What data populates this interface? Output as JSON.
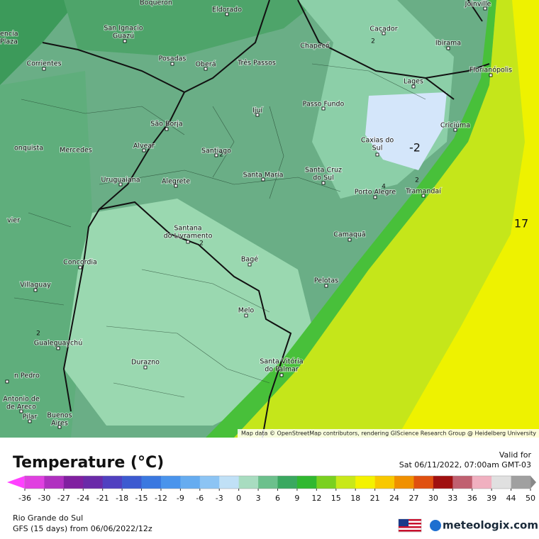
{
  "map": {
    "cities": [
      {
        "lines": [
          "Boqueron"
        ]
      },
      {
        "lines": [
          "Eldorado"
        ]
      },
      {
        "lines": [
          "Joinville"
        ]
      },
      {
        "lines": [
          "San Ignacio",
          "Guazú"
        ]
      },
      {
        "lines": [
          "encia",
          "Plaza"
        ]
      },
      {
        "lines": [
          "Posadas"
        ]
      },
      {
        "lines": [
          "Oberá"
        ]
      },
      {
        "lines": [
          "Três Passos"
        ]
      },
      {
        "lines": [
          "Chapecó"
        ]
      },
      {
        "lines": [
          "Caçador"
        ]
      },
      {
        "lines": [
          "Ibirama"
        ]
      },
      {
        "lines": [
          "Florianópolis"
        ]
      },
      {
        "lines": [
          "Corrientes"
        ]
      },
      {
        "lines": [
          "Lages"
        ]
      },
      {
        "lines": [
          "Ijuí"
        ]
      },
      {
        "lines": [
          "Passo Fundo"
        ]
      },
      {
        "lines": [
          "Criciúma"
        ]
      },
      {
        "lines": [
          "São Borja"
        ]
      },
      {
        "lines": [
          "Caxias do",
          "Sul"
        ]
      },
      {
        "lines": [
          "Alvear"
        ]
      },
      {
        "lines": [
          "Santiago"
        ]
      },
      {
        "lines": [
          "Mercedes"
        ]
      },
      {
        "lines": [
          "onquista"
        ]
      },
      {
        "lines": [
          "Santa Maria"
        ]
      },
      {
        "lines": [
          "Santa Cruz",
          "do Sul"
        ]
      },
      {
        "lines": [
          "Uruguaiana"
        ]
      },
      {
        "lines": [
          "Alegrete"
        ]
      },
      {
        "lines": [
          "Porto Alegre"
        ]
      },
      {
        "lines": [
          "Tramandaí"
        ]
      },
      {
        "lines": [
          "vier"
        ]
      },
      {
        "lines": [
          "Santana",
          "do Livramento"
        ]
      },
      {
        "lines": [
          "Camaquã"
        ]
      },
      {
        "lines": [
          "Concordia"
        ]
      },
      {
        "lines": [
          "Bagé"
        ]
      },
      {
        "lines": [
          "Villaguay"
        ]
      },
      {
        "lines": [
          "Pelotas"
        ]
      },
      {
        "lines": [
          "Melo"
        ]
      },
      {
        "lines": [
          "Gualeguaychú"
        ]
      },
      {
        "lines": [
          "Durazno"
        ]
      },
      {
        "lines": [
          "Santa Vitória",
          "do Palmar"
        ]
      },
      {
        "lines": [
          "n Pedro"
        ]
      },
      {
        "lines": [
          "Antonio de",
          "de Areco"
        ]
      },
      {
        "lines": [
          "Pilar"
        ]
      },
      {
        "lines": [
          "Buenos",
          "Aires"
        ]
      }
    ],
    "values": [
      "-2",
      "17",
      "2",
      "2",
      "2",
      "2",
      "2",
      "4"
    ],
    "attribution": "Map data © OpenStreetMap contributors, rendering GIScience Research Group @ Heidelberg University"
  },
  "legend": {
    "title": "Temperature (°C)",
    "valid_label": "Valid for",
    "valid_time": "Sat 06/11/2022, 07:00am GMT-03",
    "ticks": [
      -36,
      -30,
      -27,
      -24,
      -21,
      -18,
      -15,
      -12,
      -9,
      -6,
      -3,
      0,
      3,
      6,
      9,
      12,
      15,
      18,
      21,
      24,
      27,
      30,
      33,
      36,
      39,
      44,
      50
    ],
    "colors": [
      "#e040e0",
      "#b030c0",
      "#8020a0",
      "#6a2aa8",
      "#5040c0",
      "#3c5ad0",
      "#3a78e0",
      "#4a94ec",
      "#66acf0",
      "#8cc4f4",
      "#c0e0f6",
      "#a8dcc0",
      "#6cc08c",
      "#3aa860",
      "#30b830",
      "#7ad020",
      "#c8e81a",
      "#f4f200",
      "#f8c800",
      "#f09000",
      "#e05010",
      "#a01010",
      "#c06070",
      "#f0b0c0",
      "#e0e0e0",
      "#a0a0a0"
    ],
    "under_color": "#ff40ff",
    "over_color": "#888888"
  },
  "footer": {
    "region": "Rio Grande do Sul",
    "model": "GFS (15 days) from  06/06/2022/12z",
    "brand": "meteologix.com"
  }
}
